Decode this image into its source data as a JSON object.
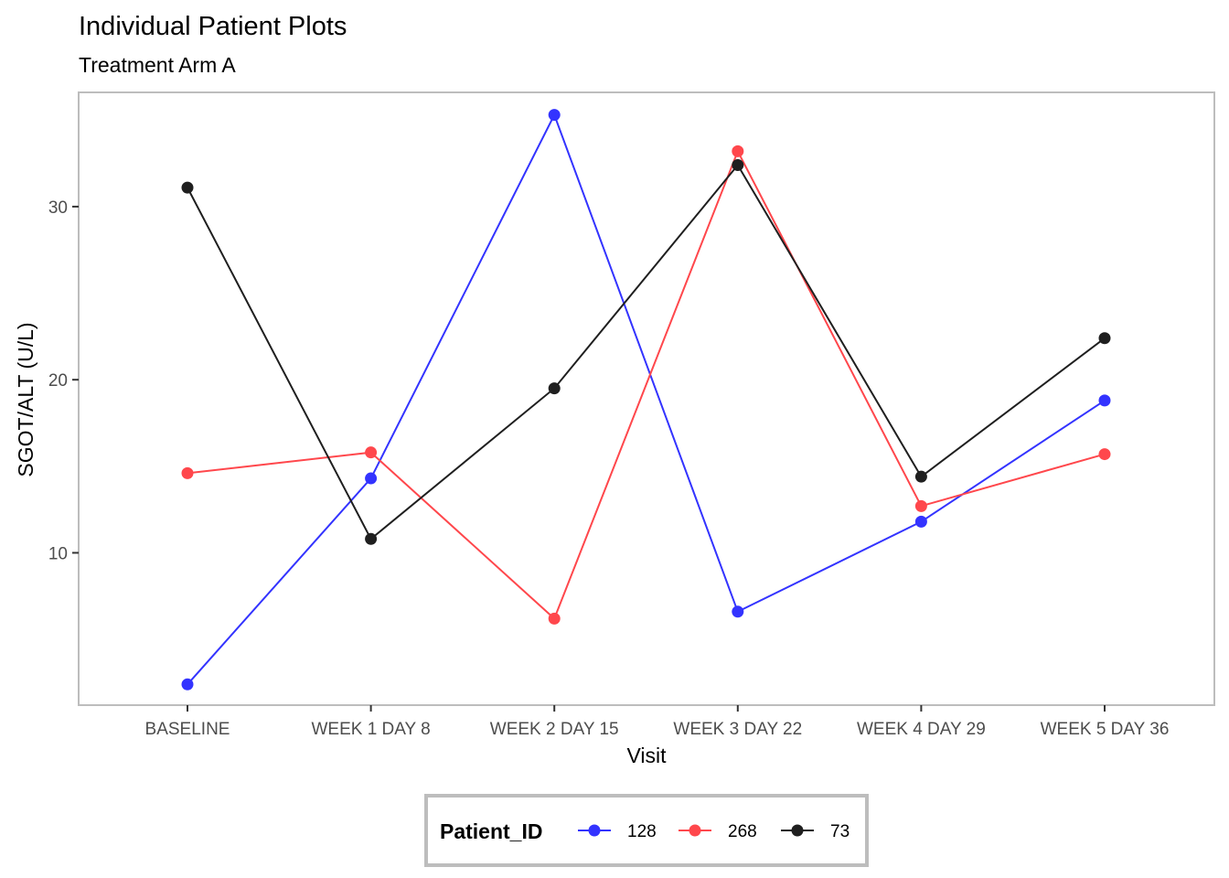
{
  "chart_data": {
    "type": "line",
    "title": "Individual Patient Plots",
    "subtitle": "Treatment Arm A",
    "xlabel": "Visit",
    "ylabel": "SGOT/ALT (U/L)",
    "categories": [
      "BASELINE",
      "WEEK 1 DAY 8",
      "WEEK 2 DAY 15",
      "WEEK 3 DAY 22",
      "WEEK 4 DAY 29",
      "WEEK 5 DAY 36"
    ],
    "yticks": [
      10,
      20,
      30
    ],
    "ylim": [
      1.2,
      36.6
    ],
    "grid": false,
    "legend": {
      "title": "Patient_ID",
      "position": "bottom"
    },
    "series": [
      {
        "name": "128",
        "color": "#3333ff",
        "values": [
          2.4,
          14.3,
          35.3,
          6.6,
          11.8,
          18.8
        ]
      },
      {
        "name": "268",
        "color": "#ff474c",
        "values": [
          14.6,
          15.8,
          6.2,
          33.2,
          12.7,
          15.7
        ]
      },
      {
        "name": "73",
        "color": "#1f1f1f",
        "values": [
          31.1,
          10.8,
          19.5,
          32.4,
          14.4,
          22.4
        ]
      }
    ]
  }
}
